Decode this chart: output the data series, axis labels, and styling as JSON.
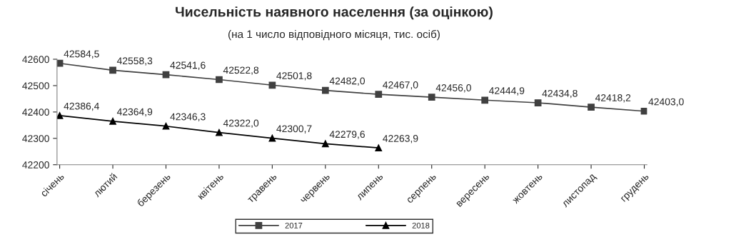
{
  "chart_data": {
    "type": "line",
    "title": "Чисельність наявного населення (за оцінкою)",
    "subtitle": "(на 1 число відповідного місяця, тис. осіб)",
    "categories": [
      "січень",
      "лютий",
      "березень",
      "квітень",
      "травень",
      "червень",
      "липень",
      "серпень",
      "вересень",
      "жовтень",
      "листопад",
      "грудень"
    ],
    "series": [
      {
        "name": "2017",
        "color": "#404040",
        "marker": "square",
        "values": [
          42584.5,
          42558.3,
          42541.6,
          42522.8,
          42501.8,
          42482.0,
          42467.0,
          42456.0,
          42444.9,
          42434.8,
          42418.2,
          42403.0
        ],
        "value_labels": [
          "42584,5",
          "42558,3",
          "42541,6",
          "42522,8",
          "42501,8",
          "42482,0",
          "42467,0",
          "42456,0",
          "42444,9",
          "42434,8",
          "42418,2",
          "42403,0"
        ]
      },
      {
        "name": "2018",
        "color": "#000000",
        "marker": "triangle",
        "values": [
          42386.4,
          42364.9,
          42346.3,
          42322.0,
          42300.7,
          42279.6,
          42263.9,
          null,
          null,
          null,
          null,
          null
        ],
        "value_labels": [
          "42386,4",
          "42364,9",
          "42346,3",
          "42322,0",
          "42300,7",
          "42279,6",
          "42263,9",
          null,
          null,
          null,
          null,
          null
        ]
      }
    ],
    "ylim": [
      42200,
      42600
    ],
    "yticks": [
      42200,
      42300,
      42400,
      42500,
      42600
    ],
    "grid": false,
    "legend": "bottom"
  }
}
